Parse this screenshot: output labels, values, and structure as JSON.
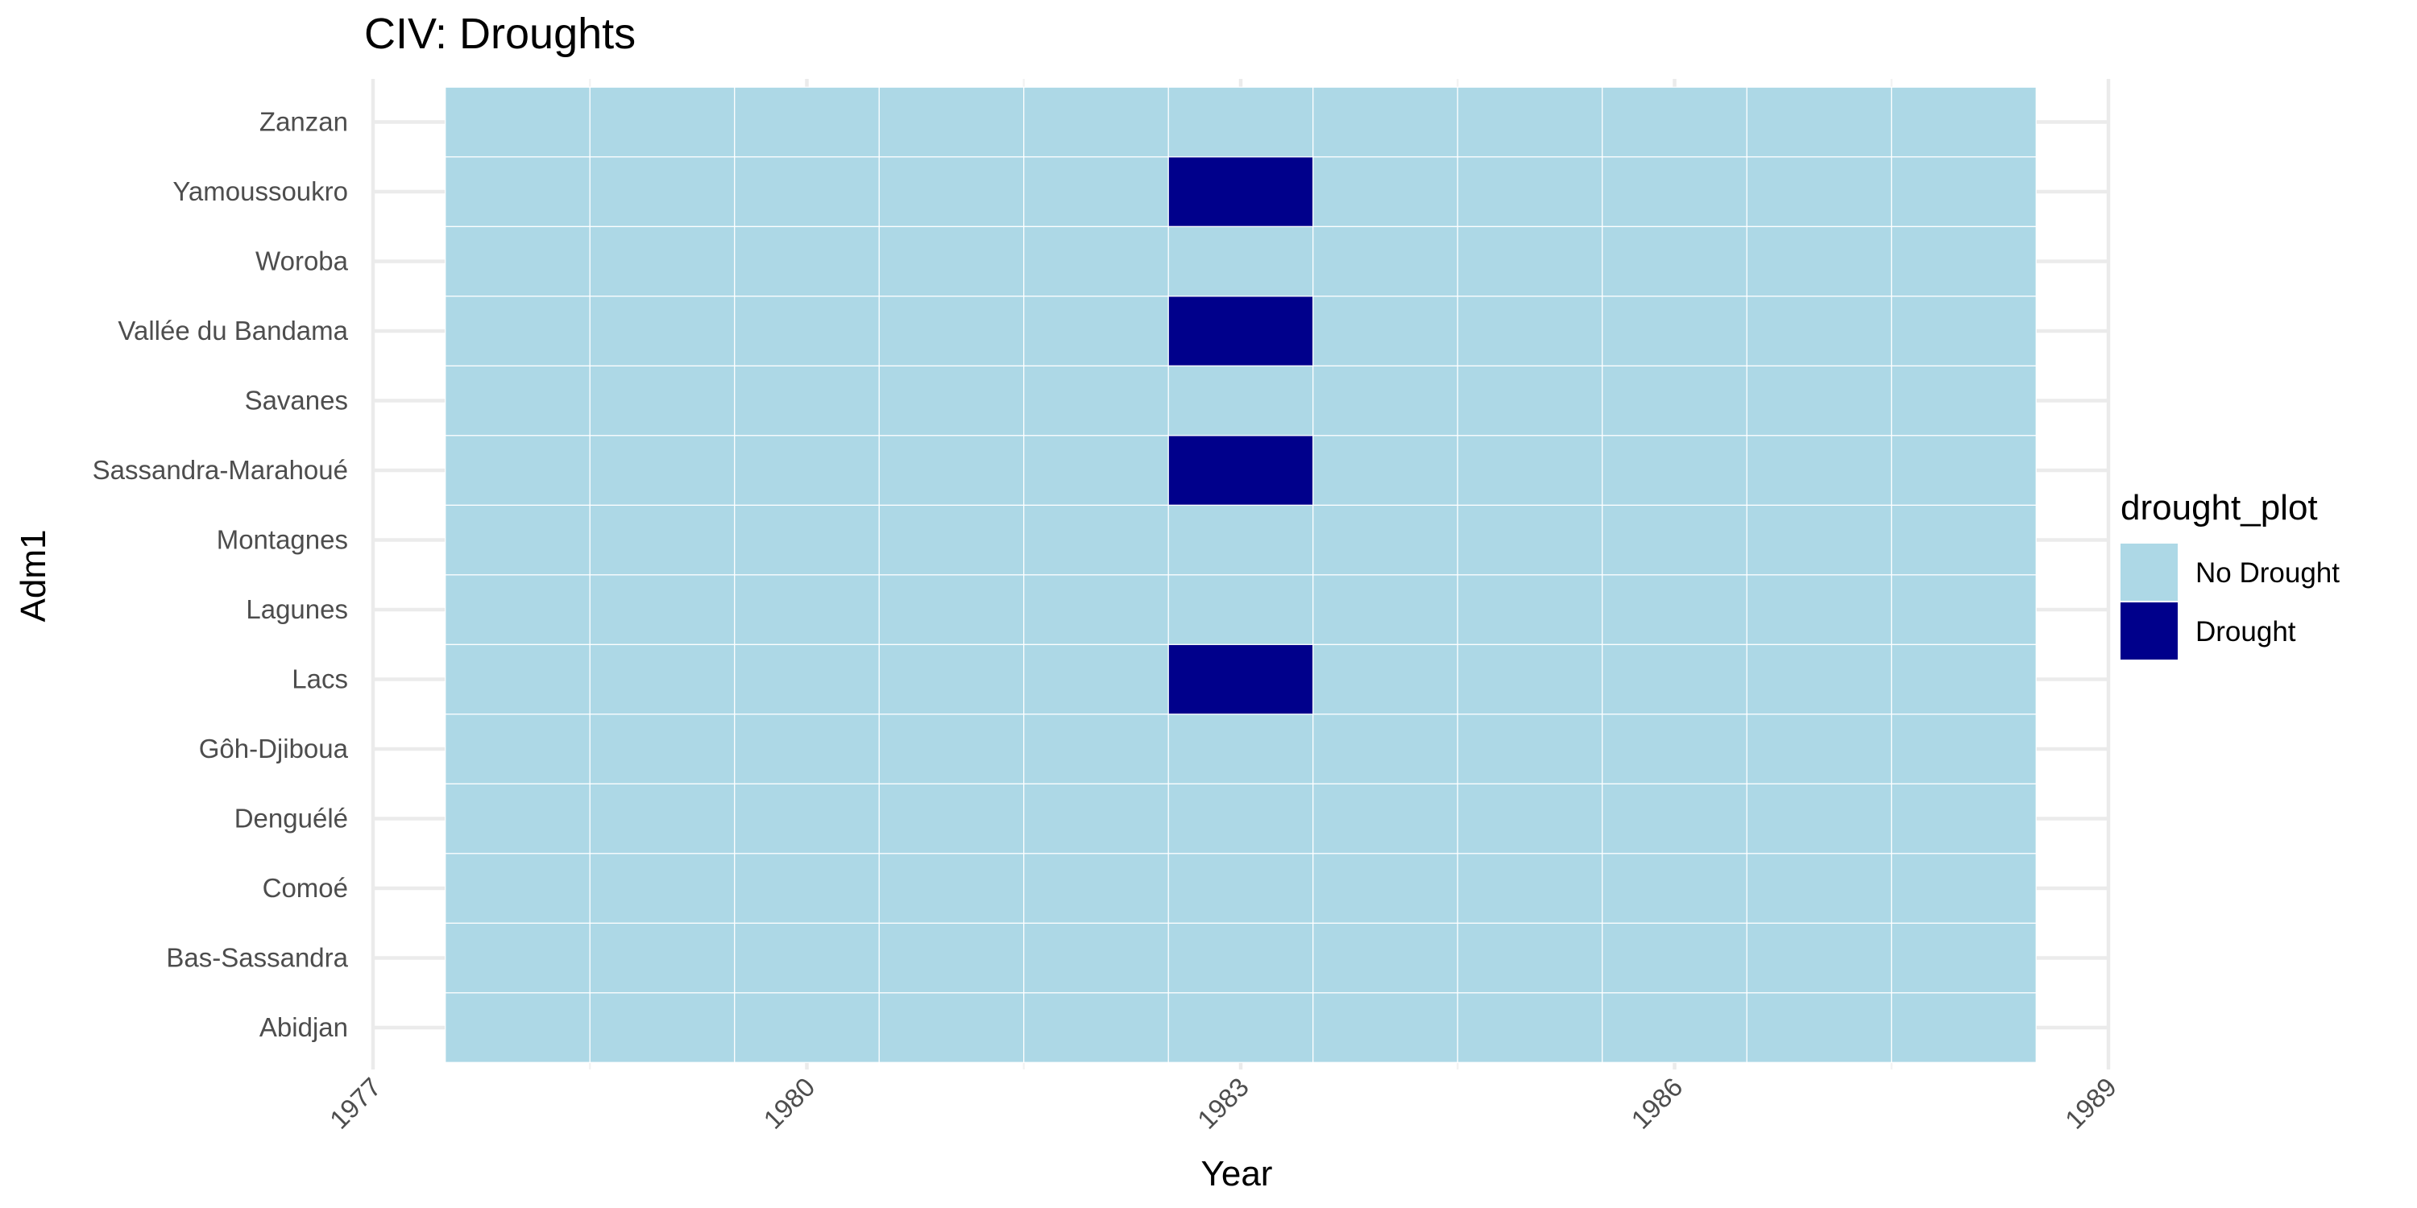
{
  "chart_data": {
    "type": "heatmap",
    "title": "CIV: Droughts",
    "xlabel": "Year",
    "ylabel": "Adm1",
    "x_ticks": [
      1977,
      1980,
      1983,
      1986,
      1989
    ],
    "xlim": [
      1977,
      1989
    ],
    "years": [
      1978,
      1979,
      1980,
      1981,
      1982,
      1983,
      1984,
      1985,
      1986,
      1987,
      1988
    ],
    "regions": [
      "Abidjan",
      "Bas-Sassandra",
      "Comoé",
      "Denguélé",
      "Gôh-Djiboua",
      "Lacs",
      "Lagunes",
      "Montagnes",
      "Sassandra-Marahoué",
      "Savanes",
      "Vallée du Bandama",
      "Woroba",
      "Yamoussoukro",
      "Zanzan"
    ],
    "drought_cells": [
      {
        "region": "Lacs",
        "year": 1983
      },
      {
        "region": "Sassandra-Marahoué",
        "year": 1983
      },
      {
        "region": "Vallée du Bandama",
        "year": 1983
      },
      {
        "region": "Yamoussoukro",
        "year": 1983
      }
    ],
    "default_value": "No Drought",
    "legend": {
      "title": "drought_plot",
      "position": "right",
      "items": [
        {
          "label": "No Drought",
          "color": "#add8e6"
        },
        {
          "label": "Drought",
          "color": "#00008b"
        }
      ]
    },
    "grid": true
  }
}
